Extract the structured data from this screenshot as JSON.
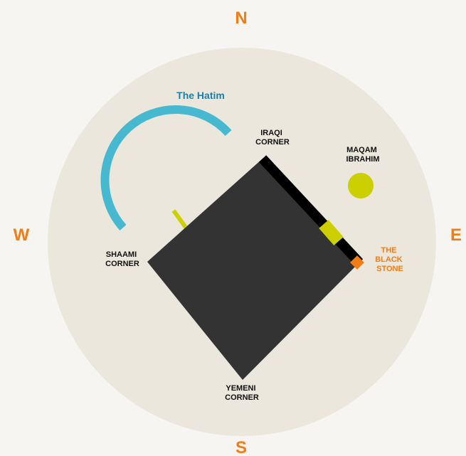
{
  "colors": {
    "background": "#f6f5f2",
    "plaza": "#ebe7dd",
    "kaaba": "#333333",
    "kiswa_band": "#000000",
    "hatim": "#46b9d1",
    "accent_lime": "#cdd000",
    "black_stone": "#f47c15",
    "compass_text": "#f47c15",
    "label_text": "#111111",
    "hatim_text": "#1c7fab"
  },
  "compass": {
    "north": "N",
    "east": "E",
    "south": "S",
    "west": "W"
  },
  "hatim": {
    "title": "The Hatim",
    "icon": "arc"
  },
  "corners": {
    "iraqi": [
      "IRAQI",
      "CORNER"
    ],
    "shaami": [
      "SHAAMI",
      "CORNER"
    ],
    "yemeni": [
      "YEMENI",
      "CORNER"
    ]
  },
  "maqam": {
    "lines": [
      "MAQAM",
      "IBRAHIM"
    ],
    "icon": "circle"
  },
  "black_stone": {
    "lines": [
      "THE",
      "BLACK",
      "STONE"
    ],
    "icon": "square"
  }
}
